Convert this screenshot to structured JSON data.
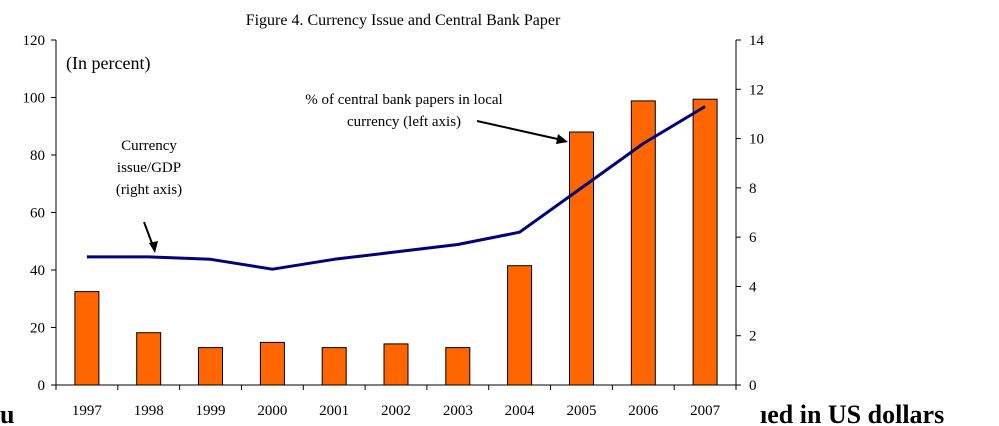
{
  "chart_data": {
    "type": "bar",
    "title": "Figure 4. Currency Issue and Central Bank Paper",
    "unit_note": "(In percent)",
    "categories": [
      "1997",
      "1998",
      "1999",
      "2000",
      "2001",
      "2002",
      "2003",
      "2004",
      "2005",
      "2006",
      "2007"
    ],
    "bars": {
      "name": "% of central bank papers in local currency (left axis)",
      "axis": "left",
      "values": [
        32.5,
        18.2,
        13.0,
        14.8,
        13.0,
        14.3,
        13.0,
        41.5,
        88.0,
        98.8,
        99.4
      ],
      "color": "#FF6600"
    },
    "line": {
      "name": "Currency issue/GDP (right axis)",
      "axis": "right",
      "values": [
        5.2,
        5.2,
        5.1,
        4.7,
        5.1,
        5.4,
        5.7,
        6.2,
        8.0,
        9.8,
        11.3
      ],
      "color": "#000080"
    },
    "left_axis": {
      "range": [
        0,
        120
      ],
      "ticks": [
        "0",
        "20",
        "40",
        "60",
        "80",
        "100",
        "120"
      ]
    },
    "right_axis": {
      "range": [
        0,
        14
      ],
      "ticks": [
        "0",
        "2",
        "4",
        "6",
        "8",
        "10",
        "12",
        "14"
      ]
    },
    "annotations": {
      "bars_label_line1": "% of central bank papers in local",
      "bars_label_line2": "currency (left axis)",
      "line_label_line1": "Currency",
      "line_label_line2": "issue/GDP",
      "line_label_line3": "(right axis)"
    },
    "grid": false,
    "legend": "none"
  },
  "page_fragments": {
    "left_text": "u",
    "right_text": "ıed in US dollars"
  }
}
